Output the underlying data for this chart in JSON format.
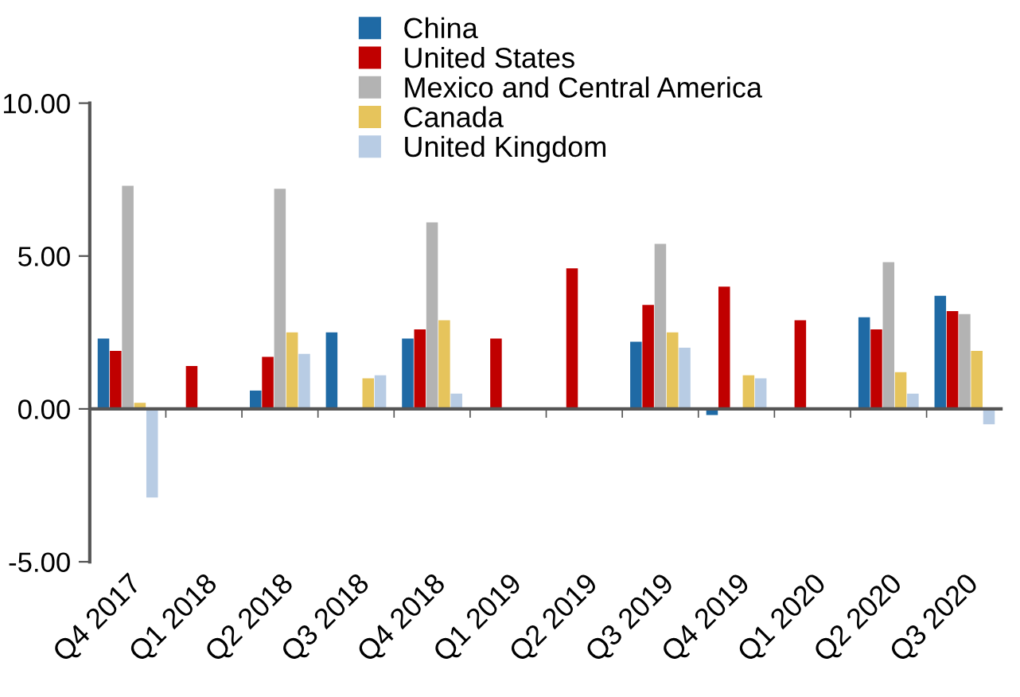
{
  "chart_data": {
    "type": "bar",
    "categories": [
      "Q4 2017",
      "Q1 2018",
      "Q2 2018",
      "Q3 2018",
      "Q4 2018",
      "Q1 2019",
      "Q2 2019",
      "Q3 2019",
      "Q4 2019",
      "Q1 2020",
      "Q2 2020",
      "Q3 2020"
    ],
    "series": [
      {
        "name": "China",
        "color": "#1f6aa5",
        "values": [
          2.3,
          null,
          0.6,
          2.5,
          2.3,
          null,
          null,
          2.2,
          -0.2,
          null,
          3.0,
          3.7
        ]
      },
      {
        "name": "United States",
        "color": "#c00000",
        "values": [
          1.9,
          1.4,
          1.7,
          null,
          2.6,
          2.3,
          4.6,
          3.4,
          4.0,
          2.9,
          2.6,
          3.2
        ]
      },
      {
        "name": "Mexico and Central America",
        "color": "#b3b3b3",
        "values": [
          7.3,
          null,
          7.2,
          null,
          6.1,
          null,
          null,
          5.4,
          null,
          null,
          4.8,
          3.1
        ]
      },
      {
        "name": "Canada",
        "color": "#e6c45c",
        "values": [
          0.2,
          null,
          2.5,
          1.0,
          2.9,
          null,
          null,
          2.5,
          1.1,
          null,
          1.2,
          1.9
        ]
      },
      {
        "name": "United Kingdom",
        "color": "#b8cce4",
        "values": [
          -2.9,
          null,
          1.8,
          1.1,
          0.5,
          null,
          null,
          2.0,
          1.0,
          null,
          0.5,
          -0.5
        ]
      }
    ],
    "ylim": [
      -5,
      10
    ],
    "yticks": [
      {
        "value": -5,
        "label": "-5.00"
      },
      {
        "value": 0,
        "label": "0.00"
      },
      {
        "value": 5,
        "label": "5.00"
      },
      {
        "value": 10,
        "label": "10.00"
      }
    ],
    "ref_lines": [
      {
        "axis": "y",
        "value": 0,
        "color": "#555555"
      }
    ],
    "grid": false,
    "legend": "top"
  }
}
